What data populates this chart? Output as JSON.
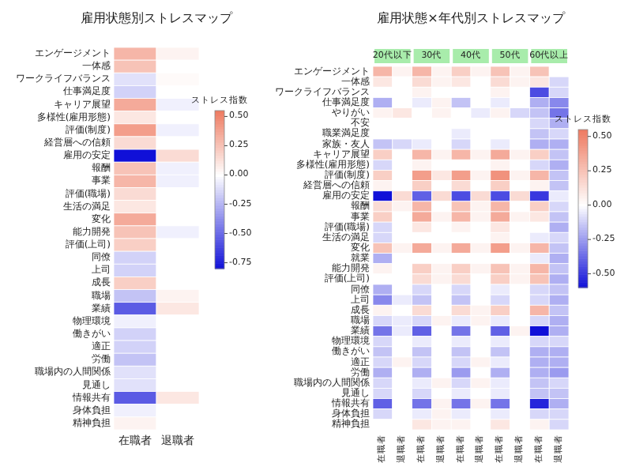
{
  "chart_data": [
    {
      "type": "heatmap",
      "title": "雇用状態別ストレスマップ",
      "categories": [
        "在職者",
        "退職者"
      ],
      "y_categories": [
        "エンゲージメント",
        "一体感",
        "ワークライフバランス",
        "仕事満足度",
        "キャリア展望",
        "多様性(雇用形態)",
        "評価(制度)",
        "経営層への信頼",
        "雇用の安定",
        "報酬",
        "事業",
        "評価(職場)",
        "生活の満足",
        "変化",
        "能力開発",
        "評価(上司)",
        "同僚",
        "上司",
        "成長",
        "職場",
        "業績",
        "物理環境",
        "働きがい",
        "適正",
        "労働",
        "職場内の人間関係",
        "見通し",
        "情報共有",
        "身体負担",
        "精神負担"
      ],
      "cells": [
        [
          0.3,
          0.05
        ],
        [
          0.25,
          0
        ],
        [
          -0.1,
          0.02
        ],
        [
          -0.15,
          0
        ],
        [
          0.35,
          -0.05
        ],
        [
          0.1,
          0
        ],
        [
          0.4,
          -0.05
        ],
        [
          0.15,
          0
        ],
        [
          -0.8,
          0.15
        ],
        [
          0.25,
          -0.05
        ],
        [
          0.3,
          -0.05
        ],
        [
          0.15,
          0
        ],
        [
          0.1,
          0
        ],
        [
          0.35,
          0
        ],
        [
          0.25,
          -0.05
        ],
        [
          0.2,
          0
        ],
        [
          -0.15,
          0
        ],
        [
          -0.15,
          0
        ],
        [
          0.2,
          0
        ],
        [
          -0.2,
          0.05
        ],
        [
          -0.55,
          0.1
        ],
        [
          -0.05,
          0
        ],
        [
          -0.15,
          0
        ],
        [
          -0.15,
          0
        ],
        [
          -0.2,
          0
        ],
        [
          -0.1,
          0
        ],
        [
          -0.1,
          0
        ],
        [
          -0.55,
          0.1
        ],
        [
          -0.05,
          0
        ],
        [
          0.05,
          0
        ]
      ],
      "clim": [
        -0.8,
        0.55
      ],
      "cticks": [
        {
          "value": 0.5,
          "label": "0.50"
        },
        {
          "value": 0.25,
          "label": "0.25"
        },
        {
          "value": 0,
          "label": "0.00"
        },
        {
          "value": -0.25,
          "label": "-0.25"
        },
        {
          "value": -0.5,
          "label": "-0.50"
        },
        {
          "value": -0.75,
          "label": "-0.75"
        }
      ],
      "clabel": "ストレス指数"
    },
    {
      "type": "heatmap",
      "title": "雇用状態×年代別ストレスマップ",
      "annotations": [
        "20代以下",
        "30代",
        "40代",
        "50代",
        "60代以上"
      ],
      "categories": [
        "在職者",
        "退職者",
        "在職者",
        "退職者",
        "在職者",
        "退職者",
        "在職者",
        "退職者",
        "在職者",
        "退職者"
      ],
      "y_categories": [
        "エンゲージメント",
        "一体感",
        "ワークライフバランス",
        "仕事満足度",
        "やりがい",
        "不安",
        "職業満足度",
        "家族・友人",
        "キャリア展望",
        "多様性(雇用形態)",
        "評価(制度)",
        "経営層への信頼",
        "雇用の安定",
        "報酬",
        "事業",
        "評価(職場)",
        "生活の満足",
        "変化",
        "就業",
        "能力開発",
        "評価(上司)",
        "同僚",
        "上司",
        "成長",
        "職場",
        "業績",
        "物理環境",
        "働きがい",
        "適正",
        "労働",
        "職場内の人間関係",
        "見通し",
        "情報共有",
        "身体負担",
        "精神負担"
      ],
      "cells": [
        [
          0.3,
          0.05,
          0.3,
          0.05,
          0.2,
          0.05,
          0.25,
          0.05,
          0.25,
          0
        ],
        [
          0.1,
          0,
          0.15,
          0.05,
          0.1,
          0,
          0.15,
          0.05,
          0.1,
          -0.1
        ],
        [
          0,
          0,
          0.05,
          0,
          0,
          0,
          0.05,
          0,
          -0.45,
          -0.1
        ],
        [
          -0.2,
          0,
          -0.05,
          0.05,
          -0.15,
          0,
          -0.05,
          0,
          -0.2,
          -0.3
        ],
        [
          0.05,
          0.1,
          0,
          0.05,
          0,
          -0.05,
          0.05,
          -0.1,
          -0.15,
          -0.35
        ],
        [
          0,
          0,
          0,
          0,
          0,
          0,
          0,
          0,
          -0.1,
          -0.2
        ],
        [
          0,
          0,
          0,
          0,
          -0.05,
          0,
          0,
          0,
          -0.15,
          -0.1
        ],
        [
          -0.15,
          -0.1,
          -0.05,
          0,
          -0.1,
          0,
          -0.05,
          0,
          -0.2,
          -0.2
        ],
        [
          0.2,
          0,
          0.3,
          0.05,
          0.3,
          0.05,
          0.35,
          0.05,
          0.2,
          -0.15
        ],
        [
          -0.1,
          0,
          0.05,
          0,
          0,
          0,
          0.05,
          0,
          -0.1,
          -0.2
        ],
        [
          0.2,
          0,
          0.4,
          0.1,
          0.4,
          0.05,
          0.45,
          0.05,
          0.3,
          -0.15
        ],
        [
          0.05,
          0,
          0.2,
          0,
          0.15,
          0,
          0.2,
          0,
          0.05,
          -0.15
        ],
        [
          -0.6,
          0.15,
          -0.4,
          0.15,
          -0.45,
          0.15,
          -0.45,
          0.15,
          -0.5,
          -0.05
        ],
        [
          0.15,
          0.05,
          0.3,
          0,
          0.25,
          0.05,
          0.3,
          0,
          0.2,
          -0.1
        ],
        [
          0.2,
          0,
          0.35,
          0.05,
          0.3,
          0.05,
          0.35,
          0.05,
          0.1,
          -0.15
        ],
        [
          -0.1,
          0,
          0.1,
          0,
          0.05,
          0,
          0.1,
          0,
          0,
          -0.2
        ],
        [
          -0.1,
          0,
          0,
          0,
          0,
          0,
          0.05,
          0,
          -0.05,
          -0.1
        ],
        [
          0.25,
          0.05,
          0.35,
          0.05,
          0.35,
          0.05,
          0.4,
          0.05,
          0.3,
          -0.15
        ],
        [
          -0.2,
          0,
          0,
          0,
          0,
          0,
          0,
          0,
          -0.05,
          -0.2
        ],
        [
          0.05,
          0,
          0.2,
          0.05,
          0.2,
          0.05,
          0.25,
          0.05,
          0.3,
          -0.15
        ],
        [
          0,
          0,
          0.15,
          0.05,
          0.15,
          0,
          0.2,
          0.05,
          0.25,
          -0.2
        ],
        [
          -0.2,
          0,
          -0.1,
          0,
          -0.1,
          0,
          -0.05,
          0,
          -0.1,
          -0.15
        ],
        [
          -0.3,
          -0.05,
          -0.15,
          0,
          -0.15,
          0,
          -0.1,
          0,
          -0.1,
          -0.2
        ],
        [
          0.05,
          0,
          0.15,
          0,
          0.15,
          0.05,
          0.2,
          0,
          0.3,
          -0.15
        ],
        [
          -0.1,
          -0.05,
          -0.1,
          0.05,
          -0.05,
          0.05,
          -0.05,
          0,
          -0.1,
          -0.2
        ],
        [
          -0.35,
          -0.05,
          -0.4,
          0,
          -0.35,
          0,
          -0.4,
          0.05,
          -0.6,
          -0.2
        ],
        [
          -0.1,
          0,
          -0.05,
          0,
          -0.05,
          0,
          -0.05,
          0,
          -0.1,
          -0.1
        ],
        [
          -0.15,
          0,
          -0.15,
          0,
          -0.15,
          0,
          -0.15,
          0,
          -0.2,
          -0.2
        ],
        [
          -0.1,
          0.05,
          -0.1,
          0,
          -0.1,
          0.05,
          -0.05,
          0,
          -0.2,
          -0.2
        ],
        [
          -0.2,
          0,
          -0.2,
          0,
          -0.25,
          0,
          -0.2,
          0,
          -0.2,
          -0.25
        ],
        [
          -0.1,
          0,
          -0.05,
          0.05,
          -0.1,
          0.05,
          -0.05,
          0,
          -0.15,
          -0.1
        ],
        [
          -0.1,
          0,
          -0.1,
          0,
          -0.05,
          0,
          -0.05,
          0,
          -0.15,
          -0.15
        ],
        [
          -0.4,
          0,
          -0.35,
          0.05,
          -0.35,
          0.05,
          -0.35,
          0,
          -0.55,
          -0.2
        ],
        [
          -0.1,
          0,
          -0.05,
          0.05,
          -0.05,
          0,
          -0.05,
          0,
          -0.1,
          -0.1
        ],
        [
          0,
          0,
          0.1,
          0.05,
          0.05,
          0,
          0.1,
          0,
          0.05,
          -0.1
        ]
      ],
      "clim": [
        -0.6,
        0.55
      ],
      "cticks": [
        {
          "value": 0.5,
          "label": "0.50"
        },
        {
          "value": 0.25,
          "label": "0.25"
        },
        {
          "value": 0,
          "label": "0.00"
        },
        {
          "value": -0.25,
          "label": "-0.25"
        },
        {
          "value": -0.5,
          "label": "-0.50"
        }
      ],
      "clabel": "ストレス指数"
    }
  ]
}
